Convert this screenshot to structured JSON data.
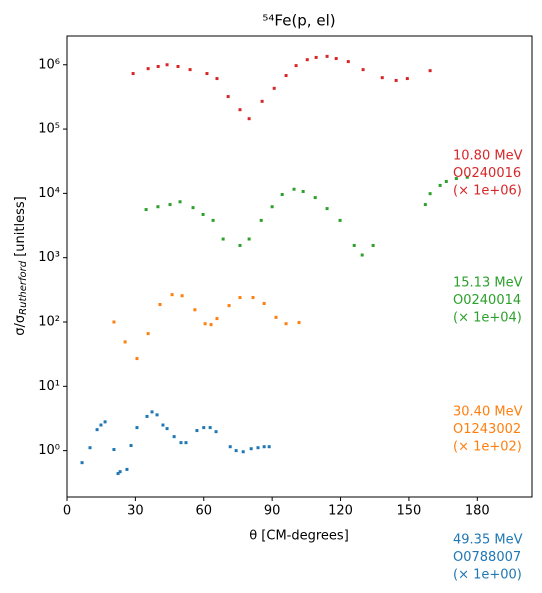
{
  "chart_data": {
    "type": "scatter",
    "title": "⁵⁴Fe(p, el)",
    "x_label": "θ [CM-degrees]",
    "y_label": [
      "σ/σ",
      "Rutherford",
      " [unitless]"
    ],
    "xlim": [
      0,
      204
    ],
    "xticks": [
      0,
      30,
      60,
      90,
      120,
      150,
      180
    ],
    "ylim": [
      0.19,
      2800000
    ],
    "log_y": true,
    "yticks": [
      {
        "value": 1,
        "label": "10⁰"
      },
      {
        "value": 10,
        "label": "10¹"
      },
      {
        "value": 100,
        "label": "10²"
      },
      {
        "value": 1000,
        "label": "10³"
      },
      {
        "value": 10000,
        "label": "10⁴"
      },
      {
        "value": 100000,
        "label": "10⁵"
      },
      {
        "value": 1000000,
        "label": "10⁶"
      }
    ],
    "series": [
      {
        "color": "#1f77b4",
        "annotation": [
          "49.35 MeV",
          "O0788007",
          "(× 1e+00)"
        ],
        "x": [
          6.6,
          10.1,
          13.2,
          14.9,
          16.7,
          20.6,
          22.4,
          23.3,
          26.3,
          28.1,
          30.7,
          35.1,
          37.3,
          39.5,
          42.1,
          43.9,
          47,
          50,
          52.2,
          57,
          60,
          62.8,
          65.4,
          71.6,
          74.2,
          77.3,
          80.8,
          83.8,
          86.5,
          88.7
        ],
        "values": [
          0.65,
          1.11,
          2.12,
          2.5,
          2.8,
          1.04,
          0.44,
          0.47,
          0.51,
          1.2,
          2.28,
          3.4,
          4.0,
          3.6,
          2.5,
          2.2,
          1.65,
          1.33,
          1.33,
          2.05,
          2.28,
          2.28,
          1.97,
          1.15,
          1.0,
          0.96,
          1.07,
          1.11,
          1.15,
          1.15
        ]
      },
      {
        "color": "#ff7f0e",
        "annotation": [
          "30.40 MeV",
          "O1243002",
          "(× 1e+02)"
        ],
        "x": [
          20.6,
          25.5,
          30.7,
          35.6,
          40.8,
          46.1,
          50.5,
          56.1,
          60.6,
          63.2,
          65.8,
          71.1,
          75.9,
          81.6,
          86.5,
          91.7,
          96.1,
          101.8
        ],
        "values": [
          100,
          49,
          27,
          66,
          187,
          266,
          256,
          155,
          94,
          91,
          113,
          180,
          240,
          240,
          194,
          118,
          94,
          98
        ]
      },
      {
        "color": "#2ca02c",
        "annotation": [
          "15.13 MeV",
          "O0240014",
          "(× 1e+04)"
        ],
        "x": [
          34.7,
          39.9,
          45.2,
          49.6,
          55.3,
          59.7,
          64.1,
          68.5,
          75.9,
          79.9,
          85.2,
          90,
          94.4,
          99.6,
          103.6,
          108.9,
          114.1,
          119.8,
          126,
          129.5,
          134.3,
          157.2,
          159.3,
          163.7,
          166.4,
          170.8,
          175.6
        ],
        "values": [
          5600,
          6200,
          6700,
          7400,
          6000,
          4700,
          3800,
          1950,
          1550,
          1950,
          3800,
          6200,
          9600,
          11600,
          10700,
          8600,
          5800,
          3800,
          1550,
          1100,
          1550,
          6700,
          9900,
          13300,
          15300,
          17000,
          17800
        ]
      },
      {
        "color": "#d62728",
        "annotation": [
          "10.80 MeV",
          "O0240016",
          "(× 1e+06)"
        ],
        "x": [
          29,
          35.6,
          40,
          43.9,
          48.7,
          54,
          61.4,
          65.8,
          70.7,
          75.9,
          79.9,
          85.6,
          90.9,
          96.1,
          100.5,
          105.4,
          109.3,
          114.1,
          118.1,
          123.4,
          129.9,
          138.3,
          144.4,
          149.3,
          159.3
        ],
        "values": [
          730000,
          870000,
          940000,
          1000000,
          940000,
          840000,
          730000,
          610000,
          320000,
          200000,
          145000,
          270000,
          430000,
          680000,
          970000,
          1200000,
          1300000,
          1350000,
          1250000,
          1120000,
          840000,
          630000,
          570000,
          610000,
          810000
        ]
      }
    ]
  }
}
